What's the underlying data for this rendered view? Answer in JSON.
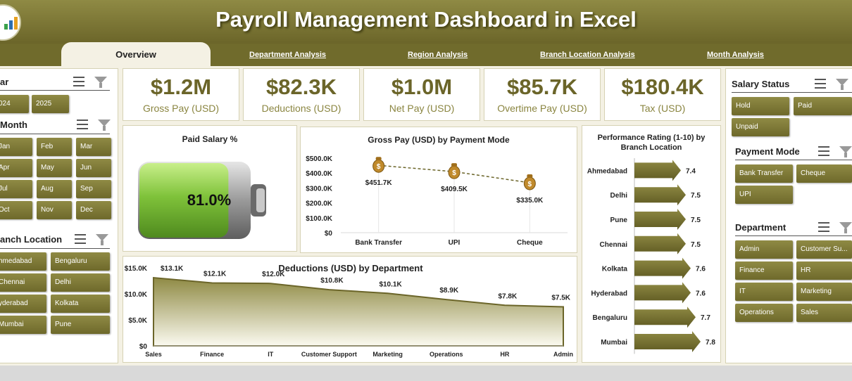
{
  "header": {
    "title": "Payroll Management Dashboard in Excel"
  },
  "tabs": [
    "Overview",
    "Department Analysis",
    "Region Analysis",
    "Branch Location Analysis",
    "Month Analysis"
  ],
  "slicers": {
    "year": {
      "label": "ar",
      "items": [
        "024",
        "2025"
      ]
    },
    "month": {
      "label": "Month",
      "items": [
        "Jan",
        "Feb",
        "Mar",
        "Apr",
        "May",
        "Jun",
        "Jul",
        "Aug",
        "Sep",
        "Oct",
        "Nov",
        "Dec"
      ]
    },
    "branch": {
      "label": "anch Location",
      "items": [
        "hmedabad",
        "Bengaluru",
        "Chennai",
        "Delhi",
        "yderabad",
        "Kolkata",
        "Mumbai",
        "Pune"
      ]
    },
    "salary_status": {
      "label": "Salary Status",
      "items": [
        "Hold",
        "Paid",
        "Unpaid"
      ]
    },
    "payment_mode": {
      "label": "Payment Mode",
      "items": [
        "Bank Transfer",
        "Cheque",
        "UPI"
      ]
    },
    "department": {
      "label": "Department",
      "items": [
        "Admin",
        "Customer Su...",
        "Finance",
        "HR",
        "IT",
        "Marketing",
        "Operations",
        "Sales"
      ]
    }
  },
  "kpis": [
    {
      "value": "$1.2M",
      "label": "Gross Pay (USD)"
    },
    {
      "value": "$82.3K",
      "label": "Deductions (USD)"
    },
    {
      "value": "$1.0M",
      "label": "Net Pay (USD)"
    },
    {
      "value": "$85.7K",
      "label": "Overtime Pay (USD)"
    },
    {
      "value": "$180.4K",
      "label": "Tax (USD)"
    }
  ],
  "colors": {
    "brand": "#6b6529",
    "accent": "#8a8540",
    "battery": "#7fc23a"
  },
  "chart_data": [
    {
      "type": "gauge",
      "title": "Paid Salary %",
      "value": 81.0,
      "value_label": "81.0%"
    },
    {
      "type": "line",
      "title": "Gross Pay (USD) by Payment Mode",
      "categories": [
        "Bank Transfer",
        "UPI",
        "Cheque"
      ],
      "values": [
        451.7,
        409.5,
        335.0
      ],
      "data_labels": [
        "$451.7K",
        "$409.5K",
        "$335.0K"
      ],
      "yticks": [
        "$500.0K",
        "$400.0K",
        "$300.0K",
        "$200.0K",
        "$100.0K",
        "$0"
      ],
      "ylim": [
        0,
        500
      ],
      "marker_icon": "money-bag-icon"
    },
    {
      "type": "area",
      "title": "Deductions (USD) by Department",
      "categories": [
        "Sales",
        "Finance",
        "IT",
        "Customer Support",
        "Marketing",
        "Operations",
        "HR",
        "Admin"
      ],
      "values": [
        13.1,
        12.1,
        12.0,
        10.8,
        10.1,
        8.9,
        7.8,
        7.5
      ],
      "data_labels": [
        "$13.1K",
        "$12.1K",
        "$12.0K",
        "$10.8K",
        "$10.1K",
        "$8.9K",
        "$7.8K",
        "$7.5K"
      ],
      "yticks": [
        "$15.0K",
        "$10.0K",
        "$5.0K",
        "$0"
      ],
      "ylim": [
        0,
        15
      ]
    },
    {
      "type": "bar",
      "orientation": "horizontal",
      "title": "Performance Rating (1-10) by Branch Location",
      "categories": [
        "Ahmedabad",
        "Delhi",
        "Pune",
        "Chennai",
        "Kolkata",
        "Hyderabad",
        "Bengaluru",
        "Mumbai"
      ],
      "values": [
        7.4,
        7.5,
        7.5,
        7.5,
        7.6,
        7.6,
        7.7,
        7.8
      ],
      "data_labels": [
        "7.4",
        "7.5",
        "7.5",
        "7.5",
        "7.6",
        "7.6",
        "7.7",
        "7.8"
      ]
    }
  ]
}
